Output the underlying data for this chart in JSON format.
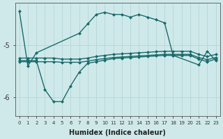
{
  "xlabel": "Humidex (Indice chaleur)",
  "ylabel": "",
  "background_color": "#cfe9ea",
  "grid_color": "#b8d8da",
  "line_color": "#1a6b6b",
  "ylim": [
    -6.35,
    -4.2
  ],
  "xlim": [
    -0.5,
    23.5
  ],
  "yticks": [
    -6,
    -5
  ],
  "xtick_labels": [
    "0",
    "1",
    "2",
    "3",
    "4",
    "5",
    "6",
    "7",
    "8",
    "9",
    "10",
    "11",
    "12",
    "13",
    "14",
    "15",
    "16",
    "17",
    "18",
    "19",
    "20",
    "21",
    "22",
    "23"
  ],
  "series": [
    {
      "x": [
        0,
        1,
        2,
        7,
        8,
        9,
        10,
        11,
        12,
        13,
        14,
        15,
        16,
        17,
        18,
        21,
        22,
        23
      ],
      "y": [
        -4.35,
        -5.4,
        -5.15,
        -4.78,
        -4.6,
        -4.42,
        -4.38,
        -4.42,
        -4.42,
        -4.47,
        -4.42,
        -4.47,
        -4.52,
        -4.58,
        -5.2,
        -5.38,
        -5.12,
        -5.3
      ]
    },
    {
      "x": [
        0,
        1,
        2,
        3,
        4,
        5,
        6,
        7,
        8,
        9,
        10,
        11,
        12,
        13,
        14,
        15,
        16,
        17,
        18,
        19,
        20,
        21,
        22,
        23
      ],
      "y": [
        -5.25,
        -5.25,
        -5.25,
        -5.25,
        -5.25,
        -5.27,
        -5.27,
        -5.27,
        -5.25,
        -5.22,
        -5.2,
        -5.18,
        -5.17,
        -5.16,
        -5.15,
        -5.14,
        -5.13,
        -5.12,
        -5.12,
        -5.12,
        -5.12,
        -5.18,
        -5.22,
        -5.18
      ]
    },
    {
      "x": [
        0,
        1,
        2,
        3,
        4,
        5,
        6,
        7,
        8,
        9,
        10,
        11,
        12,
        13,
        14,
        15,
        16,
        17,
        18,
        19,
        20,
        21,
        22,
        23
      ],
      "y": [
        -5.32,
        -5.32,
        -5.32,
        -5.32,
        -5.32,
        -5.33,
        -5.33,
        -5.33,
        -5.31,
        -5.28,
        -5.26,
        -5.24,
        -5.23,
        -5.22,
        -5.21,
        -5.2,
        -5.19,
        -5.18,
        -5.18,
        -5.18,
        -5.18,
        -5.24,
        -5.28,
        -5.24
      ]
    },
    {
      "x": [
        0,
        1,
        2,
        3,
        4,
        5,
        6,
        7,
        8,
        9,
        10,
        11,
        12,
        13,
        14,
        15,
        16,
        17,
        18,
        19,
        20,
        21,
        22,
        23
      ],
      "y": [
        -5.3,
        -5.3,
        -5.3,
        -5.85,
        -6.08,
        -6.08,
        -5.78,
        -5.52,
        -5.35,
        -5.32,
        -5.29,
        -5.26,
        -5.25,
        -5.24,
        -5.23,
        -5.22,
        -5.21,
        -5.2,
        -5.2,
        -5.2,
        -5.2,
        -5.27,
        -5.32,
        -5.27
      ]
    }
  ],
  "marker": "D",
  "markersize": 2.5,
  "linewidth": 1.0
}
